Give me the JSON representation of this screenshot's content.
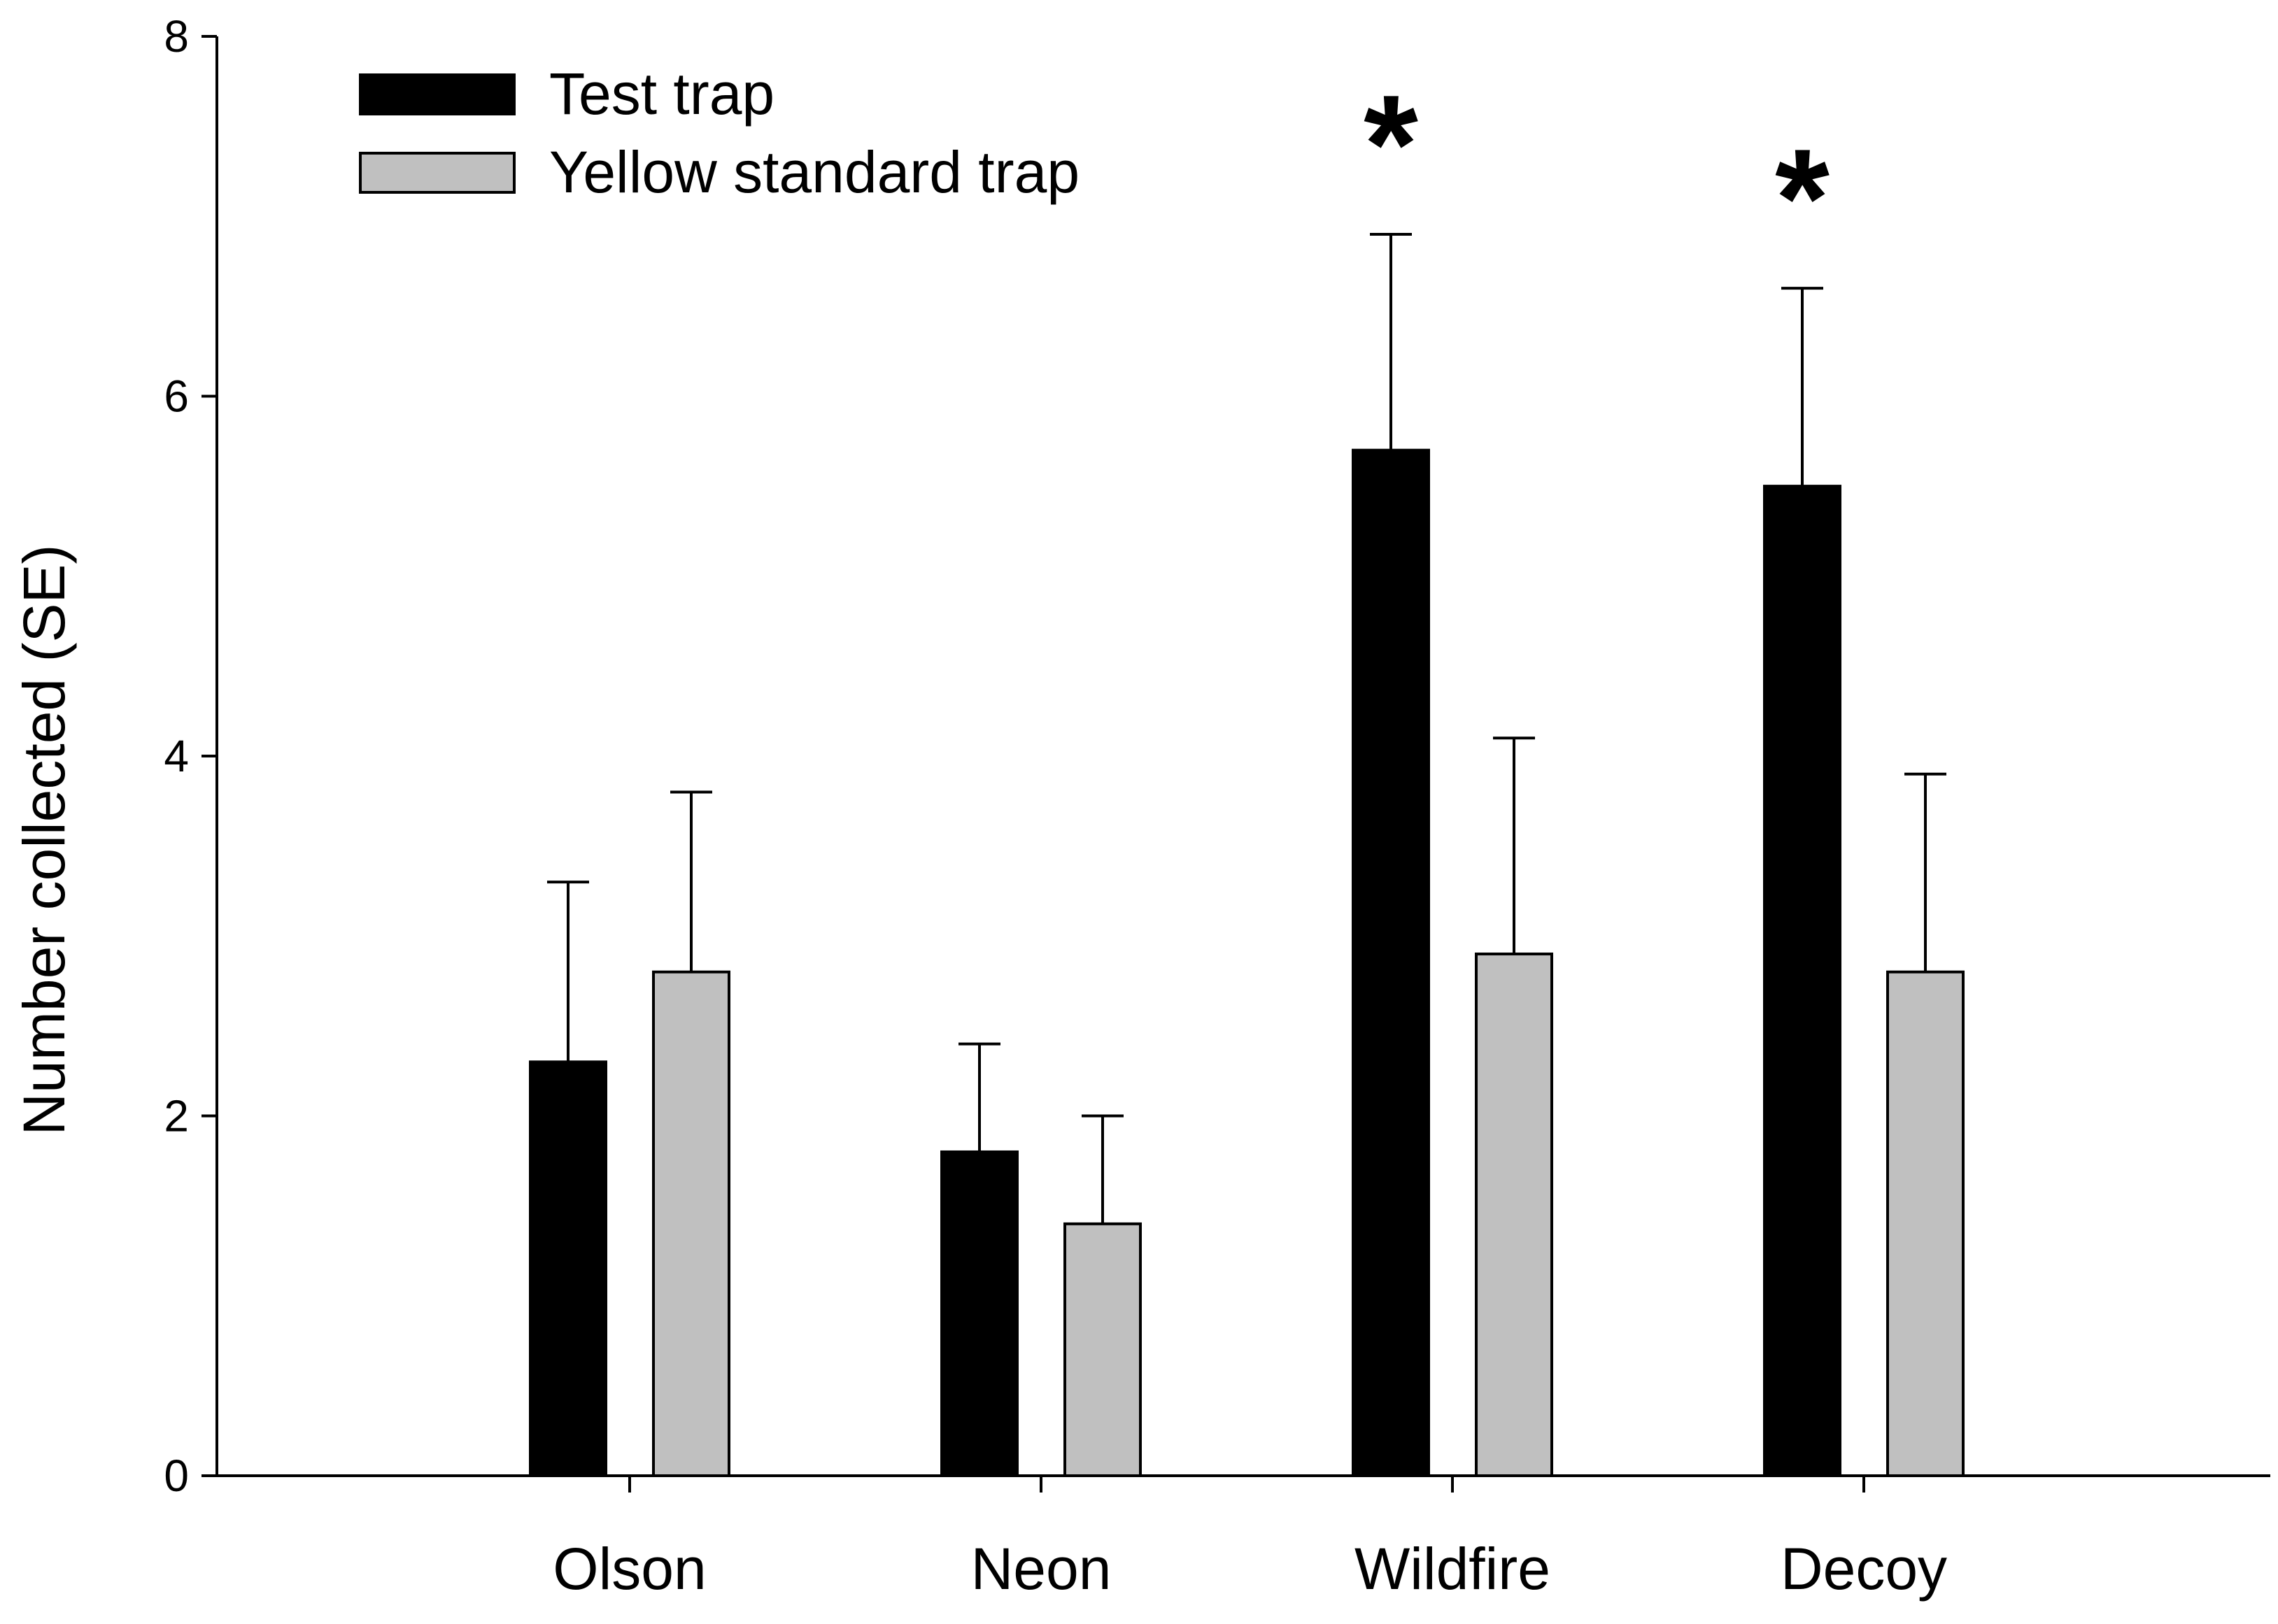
{
  "chart_data": {
    "type": "bar",
    "title": "",
    "xlabel": "",
    "ylabel": "Number collected (SE)",
    "ylim": [
      0,
      8
    ],
    "yticks": [
      0,
      2,
      4,
      6,
      8
    ],
    "categories": [
      "Olson",
      "Neon",
      "Wildfire",
      "Decoy"
    ],
    "series": [
      {
        "name": "Test trap",
        "color": "#000000",
        "values": [
          2.3,
          1.8,
          5.7,
          5.5
        ],
        "errors": [
          1.0,
          0.6,
          1.2,
          1.1
        ]
      },
      {
        "name": "Yellow standard trap",
        "color": "#c0c0c0",
        "values": [
          2.8,
          1.4,
          2.9,
          2.8
        ],
        "errors": [
          1.0,
          0.6,
          1.2,
          1.1
        ]
      }
    ],
    "annotations": [
      {
        "category": "Wildfire",
        "text": "*"
      },
      {
        "category": "Decoy",
        "text": "*"
      }
    ],
    "legend_position": "top-left",
    "grid": false
  }
}
